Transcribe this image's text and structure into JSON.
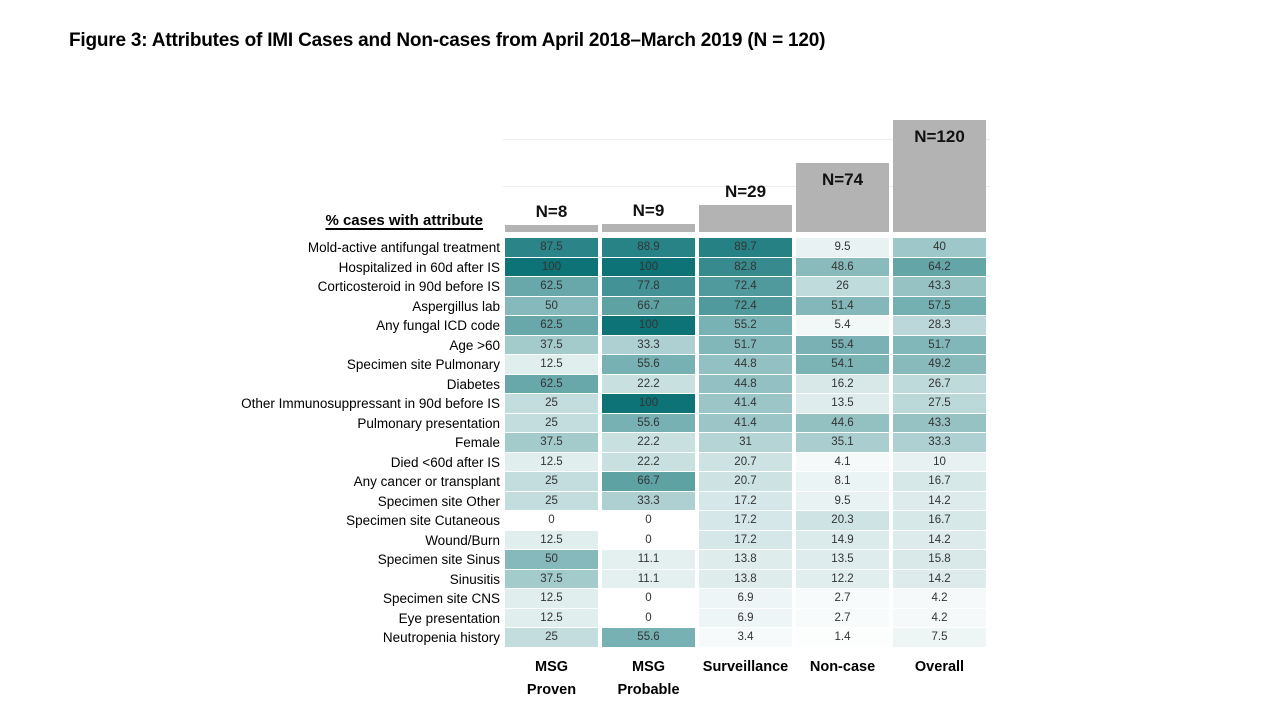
{
  "title": "Figure 3: Attributes of IMI Cases and Non-cases from April 2018–March 2019 (N = 120)",
  "chart_data": {
    "type": "heatmap",
    "title": "Figure 3: Attributes of IMI Cases and Non-cases from April 2018–March 2019 (N = 120)",
    "row_axis_label": "% cases with attribute",
    "legend_position": "none",
    "grid": "faint horizontal gridlines at N=50 and N=100 behind column-size bars",
    "columns": [
      {
        "name": "MSG Proven",
        "label_lines": [
          "MSG",
          "Proven"
        ],
        "n": 8,
        "n_label": "N=8",
        "n_label_position": "above-bar"
      },
      {
        "name": "MSG Probable",
        "label_lines": [
          "MSG",
          "Probable"
        ],
        "n": 9,
        "n_label": "N=9",
        "n_label_position": "above-bar"
      },
      {
        "name": "Surveillance",
        "label_lines": [
          "Surveillance"
        ],
        "n": 29,
        "n_label": "N=29",
        "n_label_position": "above-bar"
      },
      {
        "name": "Non-case",
        "label_lines": [
          "Non-case"
        ],
        "n": 74,
        "n_label": "N=74",
        "n_label_position": "inside-bar"
      },
      {
        "name": "Overall",
        "label_lines": [
          "Overall"
        ],
        "n": 120,
        "n_label": "N=120",
        "n_label_position": "inside-bar"
      }
    ],
    "rows": [
      {
        "label": "Mold-active antifungal treatment",
        "values": [
          87.5,
          88.9,
          89.7,
          9.5,
          40
        ]
      },
      {
        "label": "Hospitalized in 60d after IS",
        "values": [
          100,
          100,
          82.8,
          48.6,
          64.2
        ]
      },
      {
        "label": "Corticosteroid in 90d before IS",
        "values": [
          62.5,
          77.8,
          72.4,
          26,
          43.3
        ]
      },
      {
        "label": "Aspergillus lab",
        "values": [
          50,
          66.7,
          72.4,
          51.4,
          57.5
        ]
      },
      {
        "label": "Any fungal ICD code",
        "values": [
          62.5,
          100,
          55.2,
          5.4,
          28.3
        ]
      },
      {
        "label": "Age >60",
        "values": [
          37.5,
          33.3,
          51.7,
          55.4,
          51.7
        ]
      },
      {
        "label": "Specimen site Pulmonary",
        "values": [
          12.5,
          55.6,
          44.8,
          54.1,
          49.2
        ]
      },
      {
        "label": "Diabetes",
        "values": [
          62.5,
          22.2,
          44.8,
          16.2,
          26.7
        ]
      },
      {
        "label": "Other Immunosuppressant in 90d before IS",
        "values": [
          25,
          100,
          41.4,
          13.5,
          27.5
        ]
      },
      {
        "label": "Pulmonary presentation",
        "values": [
          25,
          55.6,
          41.4,
          44.6,
          43.3
        ]
      },
      {
        "label": "Female",
        "values": [
          37.5,
          22.2,
          31,
          35.1,
          33.3
        ]
      },
      {
        "label": "Died <60d after IS",
        "values": [
          12.5,
          22.2,
          20.7,
          4.1,
          10
        ]
      },
      {
        "label": "Any cancer or transplant",
        "values": [
          25,
          66.7,
          20.7,
          8.1,
          16.7
        ]
      },
      {
        "label": "Specimen site Other",
        "values": [
          25,
          33.3,
          17.2,
          9.5,
          14.2
        ]
      },
      {
        "label": "Specimen site Cutaneous",
        "values": [
          0,
          0,
          17.2,
          20.3,
          16.7
        ]
      },
      {
        "label": "Wound/Burn",
        "values": [
          12.5,
          0,
          17.2,
          14.9,
          14.2
        ]
      },
      {
        "label": "Specimen site Sinus",
        "values": [
          50,
          11.1,
          13.8,
          13.5,
          15.8
        ]
      },
      {
        "label": "Sinusitis",
        "values": [
          37.5,
          11.1,
          13.8,
          12.2,
          14.2
        ]
      },
      {
        "label": "Specimen site CNS",
        "values": [
          12.5,
          0,
          6.9,
          2.7,
          4.2
        ]
      },
      {
        "label": "Eye presentation",
        "values": [
          12.5,
          0,
          6.9,
          2.7,
          4.2
        ]
      },
      {
        "label": "Neutropenia history",
        "values": [
          25,
          55.6,
          3.4,
          1.4,
          7.5
        ]
      }
    ],
    "value_scale": {
      "min": 0,
      "max": 100,
      "unit": "% of cases",
      "min_color": "#ffffff",
      "max_color": "#0d7377"
    },
    "bar_axis": {
      "max": 120,
      "gridline_values": [
        50,
        100
      ],
      "bar_color": "#b3b3b3",
      "gridline_color": "#ededed"
    }
  },
  "colors": {
    "background": "#ffffff",
    "heat_min": "#ffffff",
    "heat_max": "#0d7377",
    "bar_gray": "#b3b3b3",
    "gridline": "#ededed",
    "cell_text": "#333333",
    "label_text": "#000000"
  }
}
